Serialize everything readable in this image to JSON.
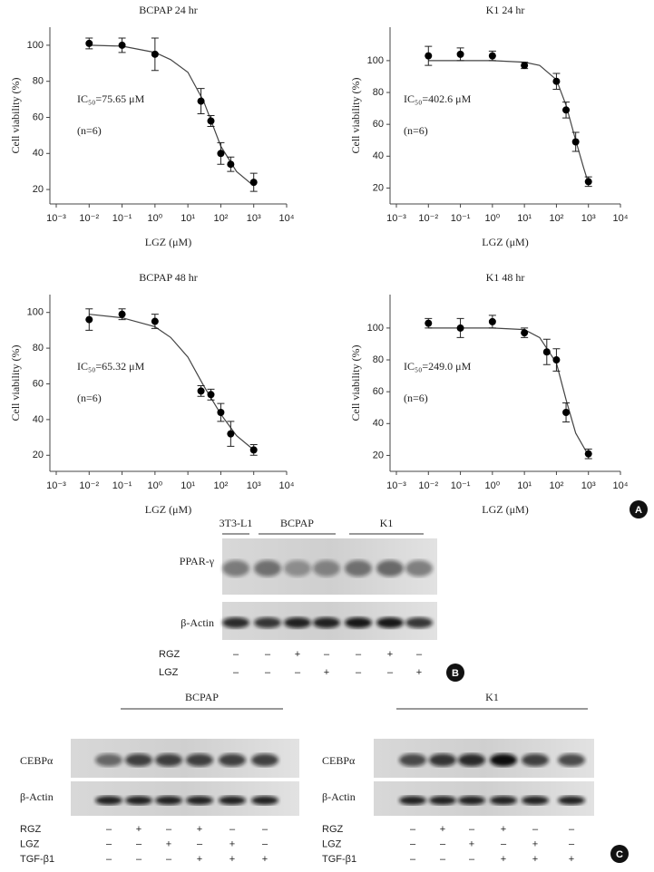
{
  "chart_data": [
    {
      "type": "scatter",
      "title": "BCPAP 24 hr",
      "xlabel": "LGZ (μM)",
      "ylabel": "Cell viability (%)",
      "annotations": [
        "IC₅₀=75.65 μM",
        "(n=6)"
      ],
      "log_x": true,
      "xlim": [
        0.001,
        10000
      ],
      "xticks": [
        {
          "value": 0.001,
          "label": "10⁻³"
        },
        {
          "value": 0.01,
          "label": "10⁻²"
        },
        {
          "value": 0.1,
          "label": "10⁻¹"
        },
        {
          "value": 1,
          "label": "10⁰"
        },
        {
          "value": 10,
          "label": "10¹"
        },
        {
          "value": 100,
          "label": "10²"
        },
        {
          "value": 1000,
          "label": "10³"
        },
        {
          "value": 10000,
          "label": "10⁴"
        }
      ],
      "ylim": [
        12,
        110
      ],
      "yticks": [
        20,
        40,
        60,
        80,
        100
      ],
      "color": "#000000",
      "points": {
        "x": [
          0.01,
          0.1,
          1,
          25,
          50,
          100,
          200,
          1000
        ],
        "values": [
          101,
          100,
          95,
          69,
          58,
          40,
          34,
          24
        ],
        "errors": [
          3,
          4,
          9,
          7,
          3,
          6,
          4,
          5
        ]
      },
      "fit": {
        "x": [
          0.01,
          0.1,
          1,
          3,
          10,
          30,
          100,
          300,
          1000
        ],
        "values": [
          100,
          99.5,
          96,
          92,
          85,
          69,
          44,
          30,
          22
        ]
      }
    },
    {
      "type": "scatter",
      "title": "K1 24 hr",
      "xlabel": "LGZ (μM)",
      "ylabel": "Cell viability (%)",
      "annotations": [
        "IC₅₀=402.6 μM",
        "(n=6)"
      ],
      "log_x": true,
      "xlim": [
        0.001,
        10000
      ],
      "xticks": [
        {
          "value": 0.001,
          "label": "10⁻³"
        },
        {
          "value": 0.01,
          "label": "10⁻²"
        },
        {
          "value": 0.1,
          "label": "10⁻¹"
        },
        {
          "value": 1,
          "label": "10⁰"
        },
        {
          "value": 10,
          "label": "10¹"
        },
        {
          "value": 100,
          "label": "10²"
        },
        {
          "value": 1000,
          "label": "10³"
        },
        {
          "value": 10000,
          "label": "10⁴"
        }
      ],
      "ylim": [
        10,
        121
      ],
      "yticks": [
        20,
        40,
        60,
        80,
        100
      ],
      "color": "#000000",
      "points": {
        "x": [
          0.01,
          0.1,
          1,
          10,
          100,
          200,
          400,
          1000
        ],
        "values": [
          103,
          104,
          103,
          97,
          87,
          69,
          49,
          24
        ],
        "errors": [
          6,
          4,
          3,
          2,
          5,
          5,
          6,
          3
        ]
      },
      "fit": {
        "x": [
          0.01,
          1,
          10,
          30,
          100,
          200,
          400,
          700,
          1000
        ],
        "values": [
          100,
          100,
          99,
          97,
          88,
          72,
          50,
          33,
          23
        ]
      }
    },
    {
      "type": "scatter",
      "title": "BCPAP 48 hr",
      "xlabel": "LGZ (μM)",
      "ylabel": "Cell viability (%)",
      "annotations": [
        "IC₅₀=65.32 μM",
        "(n=6)"
      ],
      "log_x": true,
      "xlim": [
        0.001,
        10000
      ],
      "xticks": [
        {
          "value": 0.001,
          "label": "10⁻³"
        },
        {
          "value": 0.01,
          "label": "10⁻²"
        },
        {
          "value": 0.1,
          "label": "10⁻¹"
        },
        {
          "value": 1,
          "label": "10⁰"
        },
        {
          "value": 10,
          "label": "10¹"
        },
        {
          "value": 100,
          "label": "10²"
        },
        {
          "value": 1000,
          "label": "10³"
        },
        {
          "value": 10000,
          "label": "10⁴"
        }
      ],
      "ylim": [
        11,
        110
      ],
      "yticks": [
        20,
        40,
        60,
        80,
        100
      ],
      "color": "#000000",
      "points": {
        "x": [
          0.01,
          0.1,
          1,
          25,
          50,
          100,
          200,
          1000
        ],
        "values": [
          96,
          99,
          95,
          56,
          54,
          44,
          32,
          23
        ],
        "errors": [
          6,
          3,
          4,
          3,
          3,
          5,
          7,
          3
        ]
      },
      "fit": {
        "x": [
          0.01,
          0.1,
          1,
          3,
          10,
          30,
          100,
          300,
          1000
        ],
        "values": [
          99,
          97,
          92,
          86,
          75,
          59,
          43,
          31,
          23
        ]
      }
    },
    {
      "type": "scatter",
      "title": "K1 48 hr",
      "xlabel": "LGZ (μM)",
      "ylabel": "Cell viability (%)",
      "annotations": [
        "IC₅₀=249.0 μM",
        "(n=6)"
      ],
      "log_x": true,
      "xlim": [
        0.001,
        10000
      ],
      "xticks": [
        {
          "value": 0.001,
          "label": "10⁻³"
        },
        {
          "value": 0.01,
          "label": "10⁻²"
        },
        {
          "value": 0.1,
          "label": "10⁻¹"
        },
        {
          "value": 1,
          "label": "10⁰"
        },
        {
          "value": 10,
          "label": "10¹"
        },
        {
          "value": 100,
          "label": "10²"
        },
        {
          "value": 1000,
          "label": "10³"
        },
        {
          "value": 10000,
          "label": "10⁴"
        }
      ],
      "ylim": [
        10,
        121
      ],
      "yticks": [
        20,
        40,
        60,
        80,
        100
      ],
      "color": "#000000",
      "points": {
        "x": [
          0.01,
          0.1,
          1,
          10,
          50,
          100,
          200,
          1000
        ],
        "values": [
          103,
          100,
          104,
          97,
          85,
          80,
          47,
          21
        ],
        "errors": [
          3,
          6,
          4,
          3,
          8,
          7,
          6,
          3
        ]
      },
      "fit": {
        "x": [
          0.01,
          1,
          10,
          30,
          100,
          200,
          400,
          1000
        ],
        "values": [
          100,
          100,
          99,
          94,
          78,
          55,
          34,
          20
        ]
      }
    }
  ],
  "panel_labels": [
    "A",
    "B",
    "C"
  ],
  "blot_b": {
    "groups": [
      "3T3-L1",
      "BCPAP",
      "K1"
    ],
    "rows": [
      "PPAR-γ",
      "β-Actin"
    ],
    "treatments": [
      {
        "name": "RGZ",
        "signs": [
          "–",
          "–",
          "+",
          "–",
          "–",
          "+",
          "–"
        ]
      },
      {
        "name": "LGZ",
        "signs": [
          "–",
          "–",
          "–",
          "+",
          "–",
          "–",
          "+"
        ]
      }
    ]
  },
  "blot_c": [
    {
      "group": "BCPAP",
      "rows": [
        "CEBPα",
        "β-Actin"
      ],
      "treatments": [
        {
          "name": "RGZ",
          "signs": [
            "–",
            "+",
            "–",
            "+",
            "–",
            "–"
          ]
        },
        {
          "name": "LGZ",
          "signs": [
            "–",
            "–",
            "+",
            "–",
            "+",
            "–"
          ]
        },
        {
          "name": "TGF-β1",
          "signs": [
            "–",
            "–",
            "–",
            "+",
            "+",
            "+"
          ]
        }
      ]
    },
    {
      "group": "K1",
      "rows": [
        "CEBPα",
        "β-Actin"
      ],
      "treatments": [
        {
          "name": "RGZ",
          "signs": [
            "–",
            "+",
            "–",
            "+",
            "–",
            "–"
          ]
        },
        {
          "name": "LGZ",
          "signs": [
            "–",
            "–",
            "+",
            "–",
            "+",
            "–"
          ]
        },
        {
          "name": "TGF-β1",
          "signs": [
            "–",
            "–",
            "–",
            "+",
            "+",
            "+"
          ]
        }
      ]
    }
  ]
}
